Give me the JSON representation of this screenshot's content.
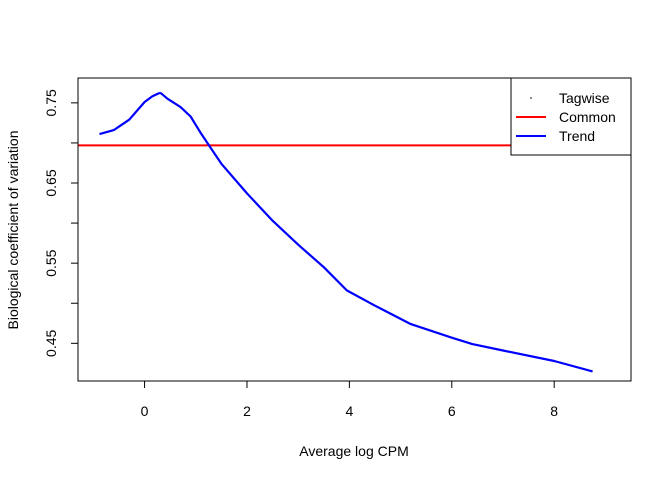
{
  "chart_data": {
    "type": "line",
    "title": "",
    "xlabel": "Average log CPM",
    "ylabel": "Biological coefficient of variation",
    "xlim": [
      -1.3,
      9.5
    ],
    "ylim": [
      0.403,
      0.781
    ],
    "x_ticks": [
      0,
      2,
      4,
      6,
      8
    ],
    "x_tick_labels": [
      "0",
      "2",
      "4",
      "6",
      "8"
    ],
    "y_ticks": [
      0.45,
      0.5,
      0.55,
      0.6,
      0.65,
      0.7,
      0.75
    ],
    "y_tick_labels": [
      "0.45",
      "",
      "0.55",
      "",
      "0.65",
      "",
      "0.75"
    ],
    "grid": false,
    "legend": {
      "position": "top-right",
      "entries": [
        {
          "label": "Tagwise",
          "color": "#000000",
          "marker": "point"
        },
        {
          "label": "Common",
          "color": "#ff0000",
          "marker": "line"
        },
        {
          "label": "Trend",
          "color": "#0000ff",
          "marker": "line"
        }
      ]
    },
    "series": [
      {
        "name": "Common",
        "color": "#ff0000",
        "kind": "hline",
        "y": 0.697
      },
      {
        "name": "Trend",
        "color": "#0000ff",
        "kind": "line",
        "x": [
          -0.88,
          -0.6,
          -0.3,
          0.0,
          0.15,
          0.28,
          0.32,
          0.45,
          0.7,
          0.9,
          1.1,
          1.3,
          1.5,
          2.0,
          2.5,
          3.0,
          3.5,
          3.95,
          4.5,
          5.2,
          6.0,
          6.4,
          7.0,
          8.0,
          8.75
        ],
        "y": [
          0.711,
          0.716,
          0.729,
          0.751,
          0.758,
          0.762,
          0.762,
          0.755,
          0.745,
          0.733,
          0.712,
          0.693,
          0.674,
          0.637,
          0.603,
          0.573,
          0.545,
          0.516,
          0.497,
          0.474,
          0.457,
          0.449,
          0.441,
          0.428,
          0.415
        ]
      }
    ]
  }
}
